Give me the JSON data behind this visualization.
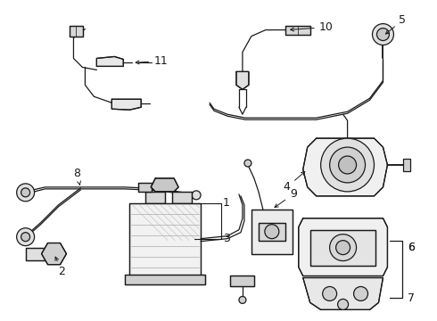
{
  "background_color": "#ffffff",
  "line_color": "#1a1a1a",
  "label_color": "#111111",
  "font_size": 9,
  "lw": 0.9,
  "fig_w": 4.9,
  "fig_h": 3.6,
  "dpi": 100
}
